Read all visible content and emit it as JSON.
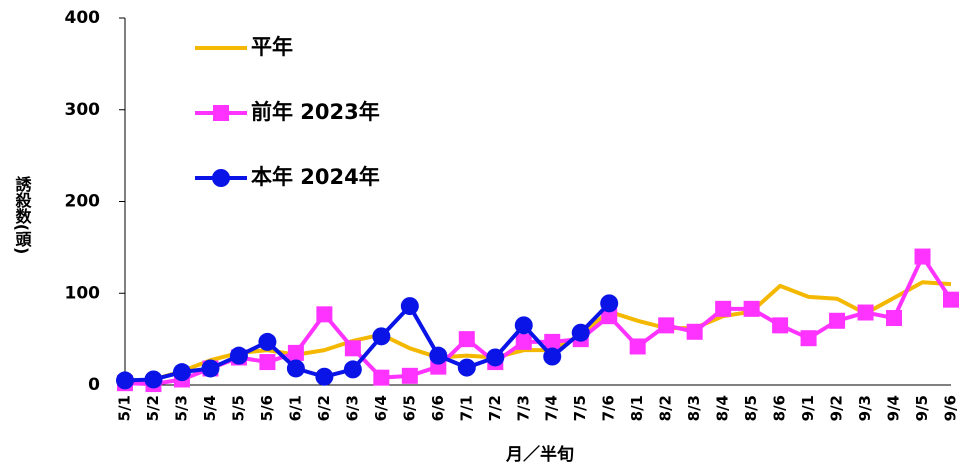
{
  "chart_data": {
    "type": "line",
    "x_label": "月／半旬",
    "y_label": "誘殺数(頭)",
    "categories": [
      "5/1",
      "5/2",
      "5/3",
      "5/4",
      "5/5",
      "5/6",
      "6/1",
      "6/2",
      "6/3",
      "6/4",
      "6/5",
      "6/6",
      "7/1",
      "7/2",
      "7/3",
      "7/4",
      "7/5",
      "7/6",
      "8/1",
      "8/2",
      "8/3",
      "8/4",
      "8/5",
      "8/6",
      "9/1",
      "9/2",
      "9/3",
      "9/4",
      "9/5",
      "9/6"
    ],
    "ylim": [
      0,
      400
    ],
    "yticks": [
      0,
      100,
      200,
      300,
      400
    ],
    "grid": false,
    "legend": "upper-left",
    "series": [
      {
        "name": "平年",
        "color": "#f5b800",
        "marker": "none",
        "values": [
          3,
          6,
          15,
          27,
          35,
          38,
          33,
          38,
          48,
          55,
          40,
          30,
          32,
          30,
          38,
          38,
          55,
          80,
          70,
          62,
          62,
          75,
          80,
          108,
          96,
          94,
          78,
          95,
          112,
          110
        ]
      },
      {
        "name": "前年 2023年",
        "color": "#ff33ff",
        "marker": "square",
        "values": [
          2,
          1,
          6,
          18,
          30,
          25,
          35,
          77,
          40,
          8,
          10,
          20,
          50,
          25,
          47,
          47,
          50,
          75,
          42,
          65,
          58,
          83,
          83,
          65,
          51,
          70,
          79,
          73,
          140,
          93
        ]
      },
      {
        "name": "本年 2024年",
        "color": "#0a14e6",
        "marker": "circle",
        "values": [
          5,
          6,
          14,
          18,
          32,
          47,
          18,
          9,
          17,
          53,
          86,
          32,
          19,
          30,
          65,
          31,
          57,
          89,
          null,
          null,
          null,
          null,
          null,
          null,
          null,
          null,
          null,
          null,
          null,
          null
        ]
      }
    ]
  }
}
